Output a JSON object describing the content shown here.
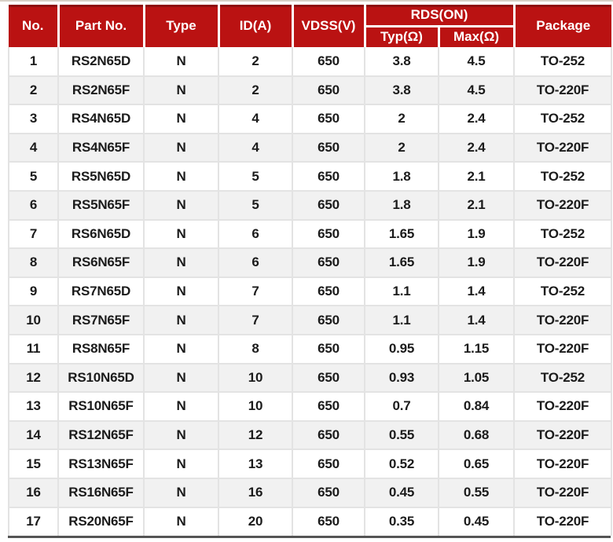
{
  "table": {
    "columns": {
      "no": "No.",
      "part_no": "Part No.",
      "type": "Type",
      "id_a": "ID(A)",
      "vdss": "VDSS(V)",
      "rds_on": "RDS(ON)",
      "typ": "Typ(Ω)",
      "max": "Max(Ω)",
      "package": "Package"
    },
    "rows": [
      [
        "1",
        "RS2N65D",
        "N",
        "2",
        "650",
        "3.8",
        "4.5",
        "TO-252"
      ],
      [
        "2",
        "RS2N65F",
        "N",
        "2",
        "650",
        "3.8",
        "4.5",
        "TO-220F"
      ],
      [
        "3",
        "RS4N65D",
        "N",
        "4",
        "650",
        "2",
        "2.4",
        "TO-252"
      ],
      [
        "4",
        "RS4N65F",
        "N",
        "4",
        "650",
        "2",
        "2.4",
        "TO-220F"
      ],
      [
        "5",
        "RS5N65D",
        "N",
        "5",
        "650",
        "1.8",
        "2.1",
        "TO-252"
      ],
      [
        "6",
        "RS5N65F",
        "N",
        "5",
        "650",
        "1.8",
        "2.1",
        "TO-220F"
      ],
      [
        "7",
        "RS6N65D",
        "N",
        "6",
        "650",
        "1.65",
        "1.9",
        "TO-252"
      ],
      [
        "8",
        "RS6N65F",
        "N",
        "6",
        "650",
        "1.65",
        "1.9",
        "TO-220F"
      ],
      [
        "9",
        "RS7N65D",
        "N",
        "7",
        "650",
        "1.1",
        "1.4",
        "TO-252"
      ],
      [
        "10",
        "RS7N65F",
        "N",
        "7",
        "650",
        "1.1",
        "1.4",
        "TO-220F"
      ],
      [
        "11",
        "RS8N65F",
        "N",
        "8",
        "650",
        "0.95",
        "1.15",
        "TO-220F"
      ],
      [
        "12",
        "RS10N65D",
        "N",
        "10",
        "650",
        "0.93",
        "1.05",
        "TO-252"
      ],
      [
        "13",
        "RS10N65F",
        "N",
        "10",
        "650",
        "0.7",
        "0.84",
        "TO-220F"
      ],
      [
        "14",
        "RS12N65F",
        "N",
        "12",
        "650",
        "0.55",
        "0.68",
        "TO-220F"
      ],
      [
        "15",
        "RS13N65F",
        "N",
        "13",
        "650",
        "0.52",
        "0.65",
        "TO-220F"
      ],
      [
        "16",
        "RS16N65F",
        "N",
        "16",
        "650",
        "0.45",
        "0.55",
        "TO-220F"
      ],
      [
        "17",
        "RS20N65F",
        "N",
        "20",
        "650",
        "0.35",
        "0.45",
        "TO-220F"
      ]
    ]
  },
  "colors": {
    "header_bg": "#ba1212",
    "header_top_edge": "#8e0d0d",
    "header_text": "#ffffff",
    "row_alt_bg": "#f1f1f1",
    "grid": "#e3e3e3",
    "body_text": "#1b1b1b",
    "bottom_border": "#555555",
    "top_strip": "#d8d0c7"
  }
}
